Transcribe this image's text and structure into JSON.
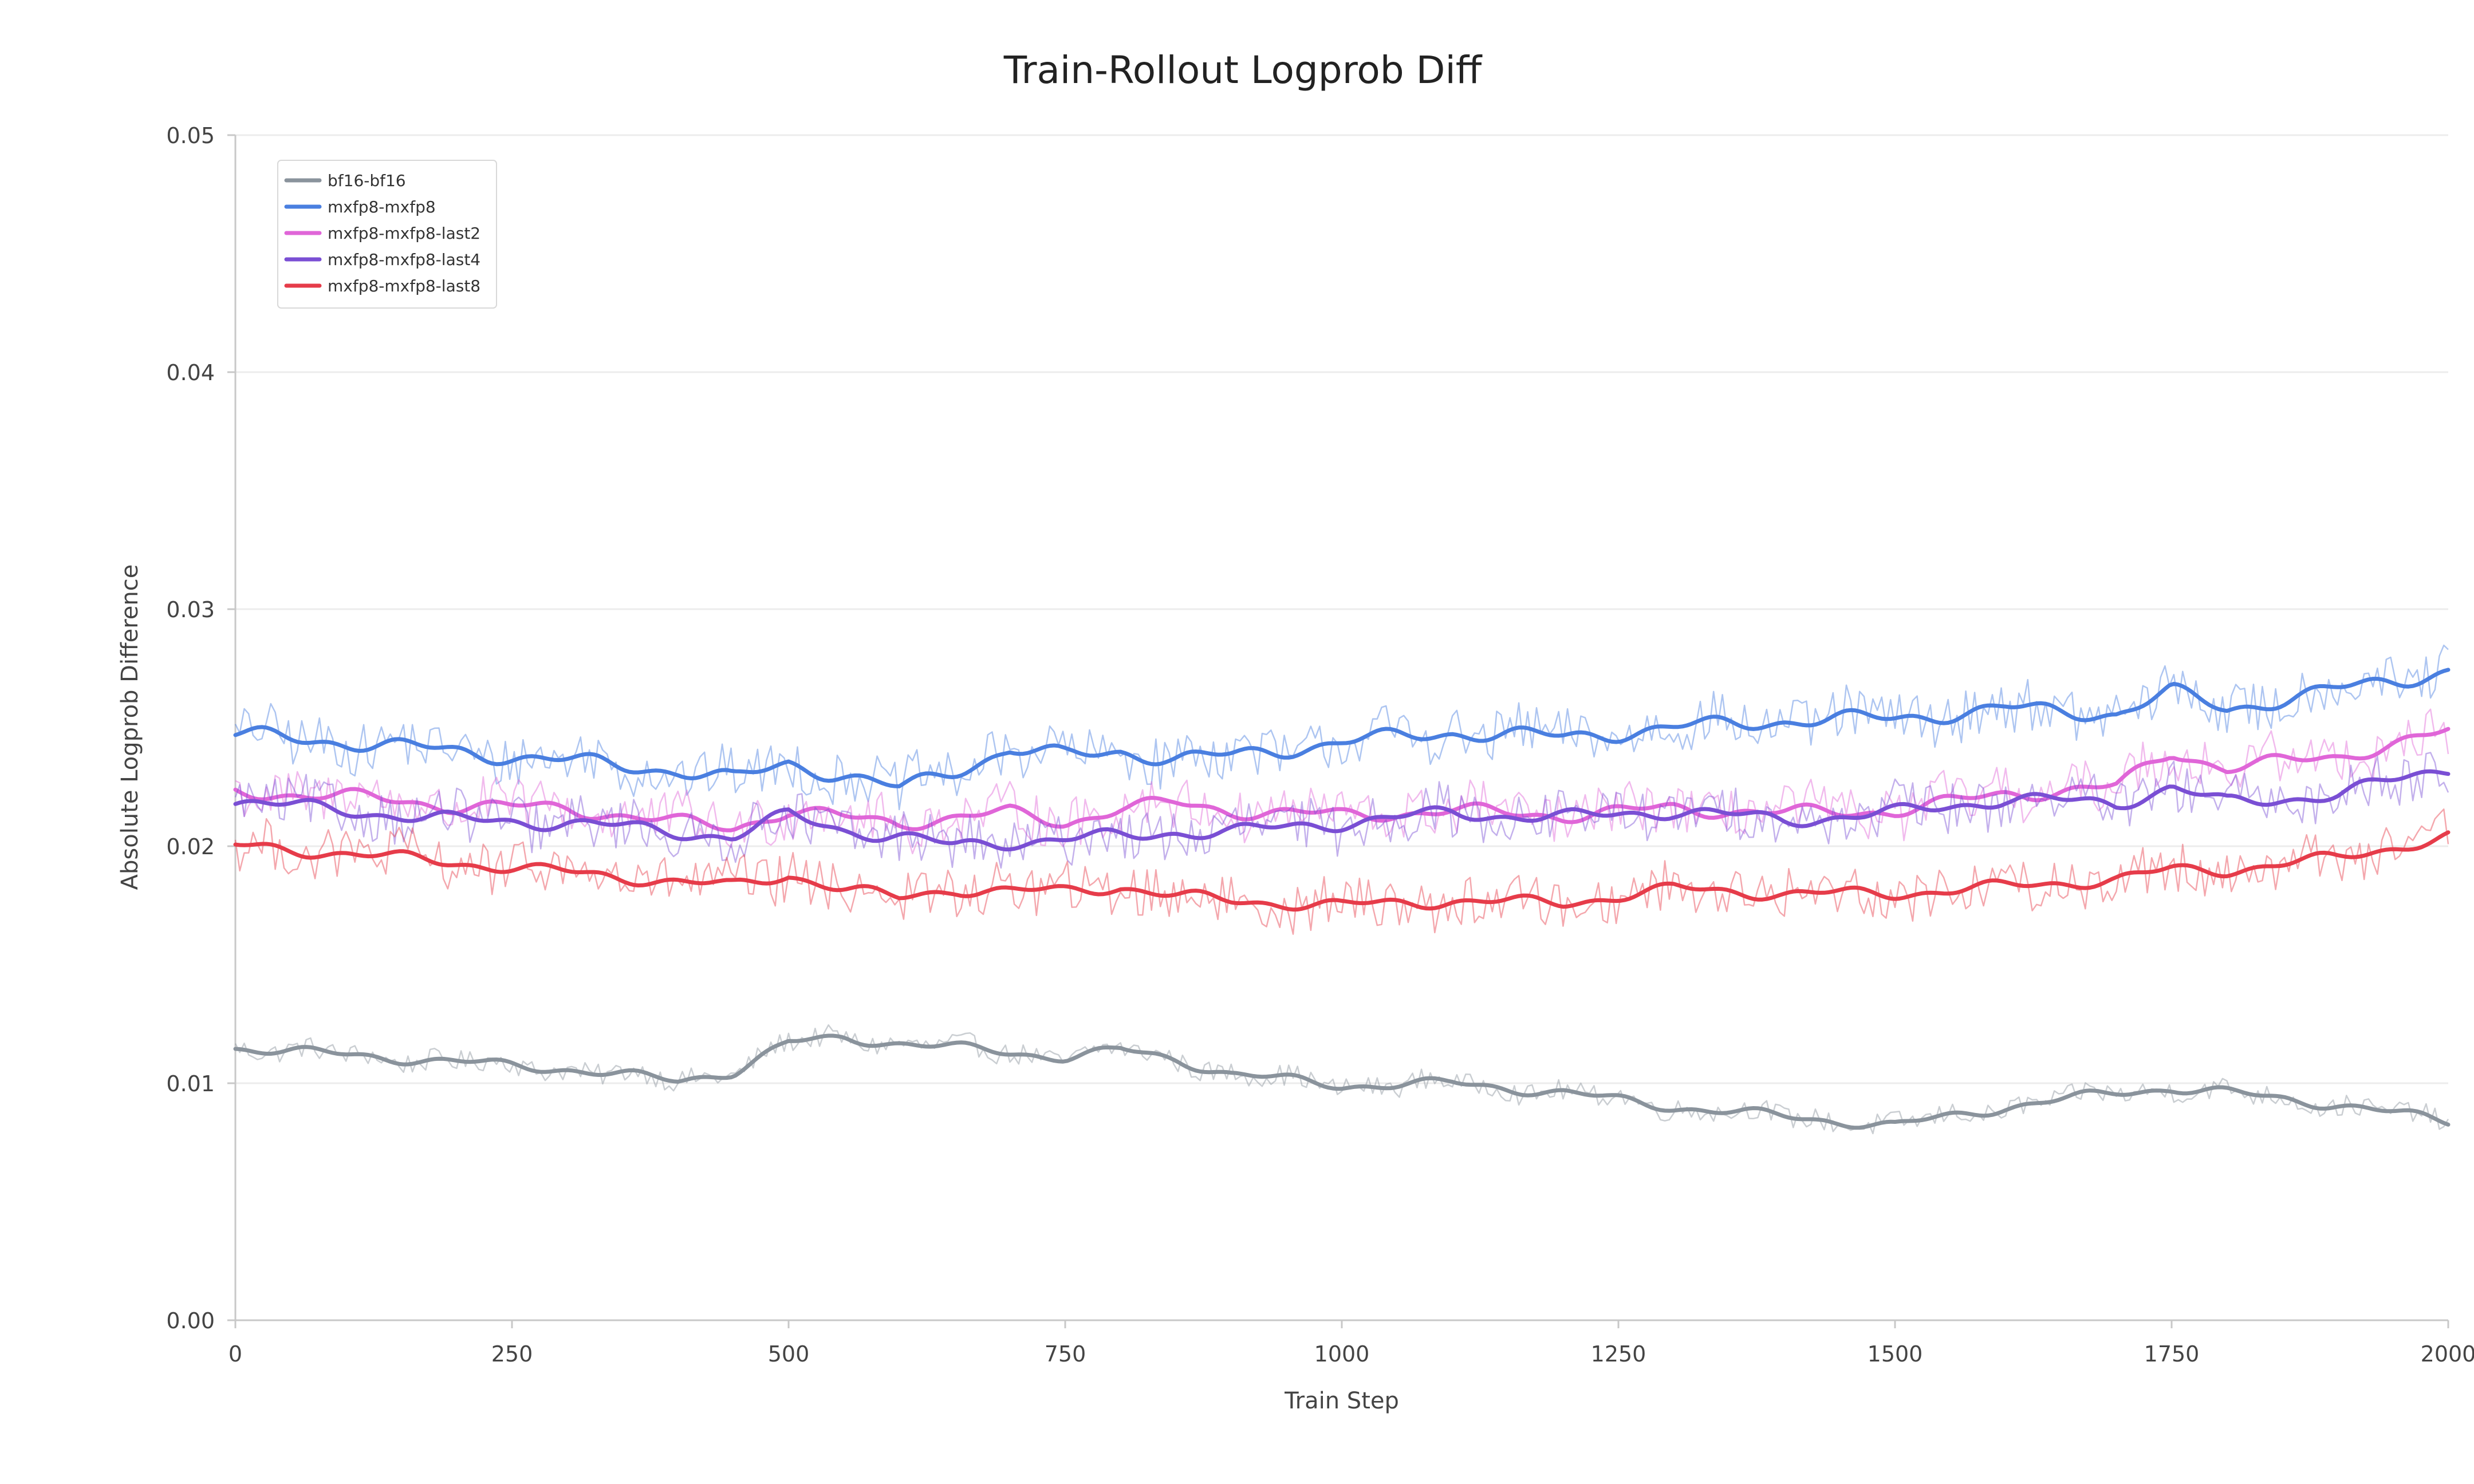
{
  "chart_data": {
    "type": "line",
    "title": "Train-Rollout Logprob Diff",
    "xlabel": "Train Step",
    "ylabel": "Absolute Logprob Difference",
    "xlim": [
      0,
      2000
    ],
    "ylim": [
      0,
      0.05
    ],
    "xticks": [
      0,
      250,
      500,
      750,
      1000,
      1250,
      1500,
      1750,
      2000
    ],
    "yticks": [
      0.0,
      0.01,
      0.02,
      0.03,
      0.04,
      0.05
    ],
    "xtick_labels": [
      "0",
      "250",
      "500",
      "750",
      "1000",
      "1250",
      "1500",
      "1750",
      "2000"
    ],
    "ytick_labels": [
      "0.00",
      "0.01",
      "0.02",
      "0.03",
      "0.04",
      "0.05"
    ],
    "grid": "horizontal",
    "legend_position": "top-left",
    "raw_line_opacity": 0.45,
    "x": [
      0,
      100,
      200,
      300,
      400,
      450,
      500,
      550,
      600,
      650,
      700,
      750,
      800,
      850,
      900,
      1000,
      1100,
      1200,
      1300,
      1400,
      1500,
      1600,
      1700,
      1750,
      1800,
      1900,
      2000
    ],
    "series": [
      {
        "name": "bf16-bf16",
        "color": "#8a939c",
        "values": [
          0.0115,
          0.0112,
          0.0109,
          0.0106,
          0.0101,
          0.0105,
          0.0117,
          0.0119,
          0.0117,
          0.0115,
          0.0113,
          0.0111,
          0.0114,
          0.011,
          0.0104,
          0.0099,
          0.01,
          0.0096,
          0.009,
          0.0086,
          0.0082,
          0.009,
          0.0096,
          0.0098,
          0.0096,
          0.0091,
          0.0084
        ]
      },
      {
        "name": "mxfp8-mxfp8",
        "color": "#4a7fe0",
        "values": [
          0.0247,
          0.0244,
          0.024,
          0.0236,
          0.0232,
          0.0228,
          0.0235,
          0.023,
          0.0224,
          0.0232,
          0.0241,
          0.0238,
          0.024,
          0.0237,
          0.0238,
          0.0244,
          0.0248,
          0.0246,
          0.025,
          0.0253,
          0.0254,
          0.0258,
          0.0256,
          0.0265,
          0.0258,
          0.0266,
          0.0274
        ]
      },
      {
        "name": "mxfp8-mxfp8-last2",
        "color": "#e066d8",
        "values": [
          0.0223,
          0.0221,
          0.0217,
          0.0216,
          0.021,
          0.0208,
          0.0215,
          0.0212,
          0.021,
          0.0212,
          0.0214,
          0.021,
          0.0216,
          0.0218,
          0.0215,
          0.0213,
          0.0215,
          0.0213,
          0.0216,
          0.0214,
          0.0215,
          0.0222,
          0.0225,
          0.024,
          0.0233,
          0.0238,
          0.0248
        ]
      },
      {
        "name": "mxfp8-mxfp8-last4",
        "color": "#7a4fd4",
        "values": [
          0.0219,
          0.0215,
          0.0211,
          0.021,
          0.0206,
          0.0204,
          0.0213,
          0.0207,
          0.0204,
          0.02,
          0.0202,
          0.0203,
          0.0204,
          0.0206,
          0.0206,
          0.021,
          0.0214,
          0.0212,
          0.0215,
          0.0211,
          0.0214,
          0.022,
          0.0218,
          0.0225,
          0.0218,
          0.0222,
          0.0233
        ]
      },
      {
        "name": "mxfp8-mxfp8-last8",
        "color": "#e63c4a",
        "values": [
          0.02,
          0.0197,
          0.0193,
          0.0189,
          0.0185,
          0.0183,
          0.0188,
          0.0182,
          0.0178,
          0.0182,
          0.0181,
          0.0181,
          0.0183,
          0.0179,
          0.0177,
          0.0175,
          0.0177,
          0.0176,
          0.0182,
          0.018,
          0.018,
          0.0183,
          0.0186,
          0.019,
          0.019,
          0.0195,
          0.0204
        ]
      }
    ]
  }
}
